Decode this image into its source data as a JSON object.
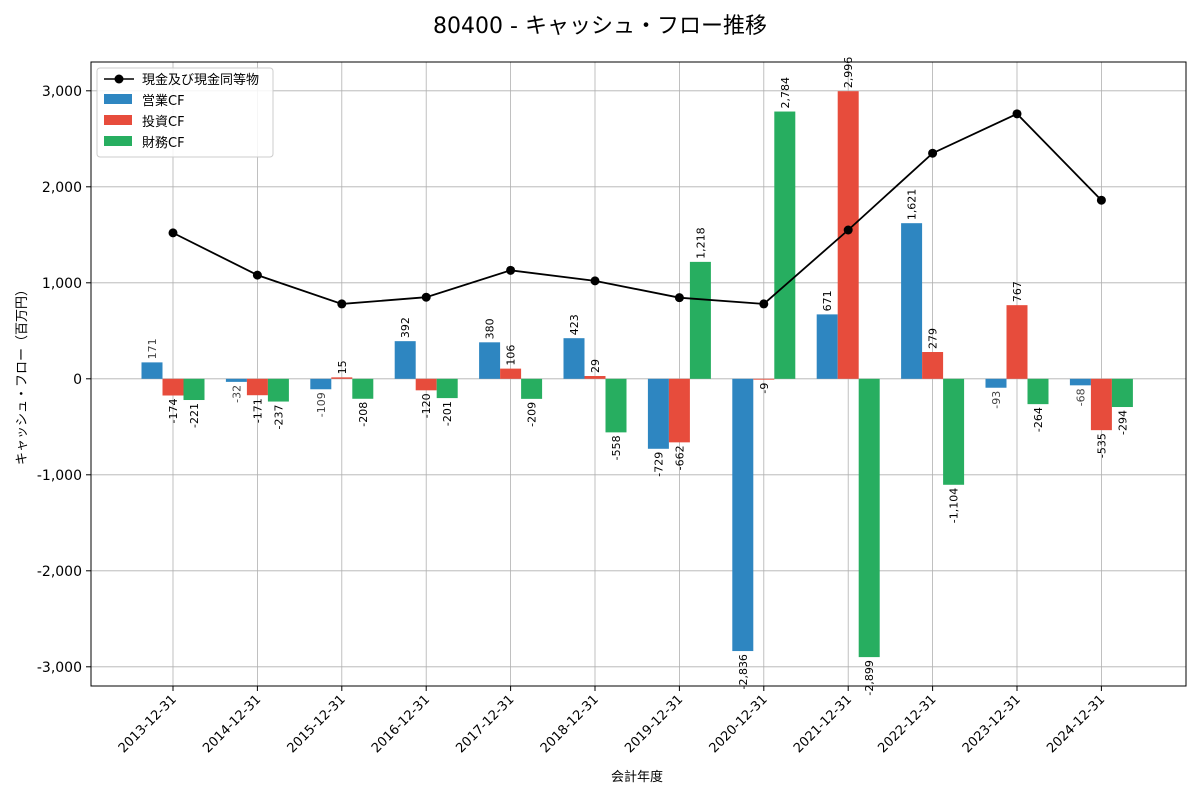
{
  "chart_data": {
    "type": "bar",
    "title": "80400 - キャッシュ・フロー推移",
    "xlabel": "会計年度",
    "ylabel": "キャッシュ・フロー（百万円）",
    "ylim": [
      -3200,
      3300
    ],
    "yticks": [
      -3000,
      -2000,
      -1000,
      0,
      1000,
      2000,
      3000
    ],
    "ytick_labels": [
      "-3,000",
      "-2,000",
      "-1,000",
      "0",
      "1,000",
      "2,000",
      "3,000"
    ],
    "grid": true,
    "legend_position": "top-left",
    "categories": [
      "2013-12-31",
      "2014-12-31",
      "2015-12-31",
      "2016-12-31",
      "2017-12-31",
      "2018-12-31",
      "2019-12-31",
      "2020-12-31",
      "2021-12-31",
      "2022-12-31",
      "2023-12-31",
      "2024-12-31"
    ],
    "series": [
      {
        "name": "営業CF",
        "type": "bar",
        "color": "#2e86c1",
        "values": [
          171,
          -32,
          -109,
          392,
          380,
          423,
          -729,
          -2836,
          671,
          1621,
          -93,
          -68
        ],
        "labels": [
          "171",
          "-32",
          "-109",
          "392",
          "380",
          "423",
          "-729",
          "-2,836",
          "671",
          "1,621",
          "-93",
          "-68"
        ]
      },
      {
        "name": "投資CF",
        "type": "bar",
        "color": "#e74c3c",
        "values": [
          -174,
          -171,
          15,
          -120,
          106,
          29,
          -662,
          -9,
          2996,
          279,
          767,
          -535
        ],
        "labels": [
          "-174",
          "-171",
          "15",
          "-120",
          "106",
          "29",
          "-662",
          "-9",
          "2,996",
          "279",
          "767",
          "-535"
        ]
      },
      {
        "name": "財務CF",
        "type": "bar",
        "color": "#27ae60",
        "values": [
          -221,
          -237,
          -208,
          -201,
          -209,
          -558,
          1218,
          2784,
          -2899,
          -1104,
          -264,
          -294
        ],
        "labels": [
          "-221",
          "-237",
          "-208",
          "-201",
          "-209",
          "-558",
          "1,218",
          "2,784",
          "-2,899",
          "-1,104",
          "-264",
          "-294"
        ]
      },
      {
        "name": "現金及び現金同等物",
        "type": "line",
        "color": "#000000",
        "values": [
          1520,
          1080,
          780,
          850,
          1130,
          1020,
          845,
          780,
          1550,
          2350,
          2760,
          1860
        ]
      }
    ]
  }
}
